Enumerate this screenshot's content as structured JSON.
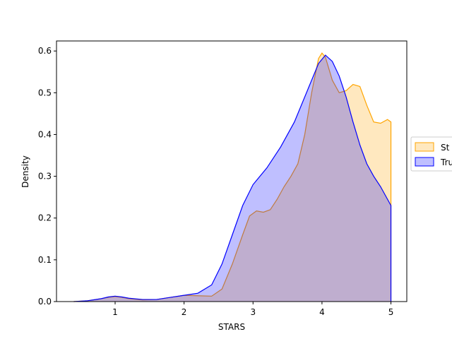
{
  "chart_data": {
    "type": "area",
    "title": "",
    "xlabel": "STARS",
    "ylabel": "Density",
    "xlim": [
      0.15,
      5.23
    ],
    "ylim": [
      0.0,
      0.624
    ],
    "xticks": [
      1,
      2,
      3,
      4,
      5
    ],
    "yticks": [
      0.0,
      0.1,
      0.2,
      0.3,
      0.4,
      0.5,
      0.6
    ],
    "xtick_labels": [
      "1",
      "2",
      "3",
      "4",
      "5"
    ],
    "ytick_labels": [
      "0.0",
      "0.1",
      "0.2",
      "0.3",
      "0.4",
      "0.5",
      "0.6"
    ],
    "grid": false,
    "legend_position": "right, partially clipped",
    "series": [
      {
        "name": "St",
        "fill_color": "#ffa500",
        "edge_color": "#ffa500",
        "fill_opacity": 0.25,
        "points": [
          [
            0.4,
            0.0
          ],
          [
            0.6,
            0.002
          ],
          [
            0.8,
            0.007
          ],
          [
            0.9,
            0.01
          ],
          [
            1.0,
            0.012
          ],
          [
            1.1,
            0.01
          ],
          [
            1.2,
            0.007
          ],
          [
            1.4,
            0.004
          ],
          [
            1.6,
            0.005
          ],
          [
            1.8,
            0.01
          ],
          [
            2.0,
            0.015
          ],
          [
            2.2,
            0.014
          ],
          [
            2.4,
            0.013
          ],
          [
            2.55,
            0.03
          ],
          [
            2.7,
            0.09
          ],
          [
            2.85,
            0.16
          ],
          [
            2.95,
            0.205
          ],
          [
            3.05,
            0.217
          ],
          [
            3.15,
            0.214
          ],
          [
            3.25,
            0.22
          ],
          [
            3.35,
            0.245
          ],
          [
            3.45,
            0.275
          ],
          [
            3.55,
            0.3
          ],
          [
            3.65,
            0.33
          ],
          [
            3.75,
            0.4
          ],
          [
            3.85,
            0.5
          ],
          [
            3.95,
            0.582
          ],
          [
            4.0,
            0.595
          ],
          [
            4.05,
            0.585
          ],
          [
            4.15,
            0.53
          ],
          [
            4.25,
            0.5
          ],
          [
            4.35,
            0.505
          ],
          [
            4.45,
            0.52
          ],
          [
            4.55,
            0.515
          ],
          [
            4.65,
            0.47
          ],
          [
            4.75,
            0.43
          ],
          [
            4.85,
            0.427
          ],
          [
            4.95,
            0.436
          ],
          [
            5.0,
            0.43
          ]
        ]
      },
      {
        "name": "Tru",
        "fill_color": "#0000ff",
        "edge_color": "#0000ff",
        "fill_opacity": 0.25,
        "points": [
          [
            0.4,
            0.0
          ],
          [
            0.6,
            0.002
          ],
          [
            0.8,
            0.007
          ],
          [
            0.9,
            0.011
          ],
          [
            1.0,
            0.013
          ],
          [
            1.1,
            0.011
          ],
          [
            1.2,
            0.008
          ],
          [
            1.4,
            0.005
          ],
          [
            1.6,
            0.005
          ],
          [
            1.8,
            0.01
          ],
          [
            2.0,
            0.015
          ],
          [
            2.2,
            0.02
          ],
          [
            2.4,
            0.04
          ],
          [
            2.55,
            0.09
          ],
          [
            2.7,
            0.16
          ],
          [
            2.85,
            0.23
          ],
          [
            3.0,
            0.28
          ],
          [
            3.2,
            0.32
          ],
          [
            3.4,
            0.37
          ],
          [
            3.6,
            0.43
          ],
          [
            3.8,
            0.51
          ],
          [
            3.95,
            0.57
          ],
          [
            4.05,
            0.59
          ],
          [
            4.15,
            0.575
          ],
          [
            4.25,
            0.54
          ],
          [
            4.35,
            0.49
          ],
          [
            4.45,
            0.43
          ],
          [
            4.55,
            0.375
          ],
          [
            4.65,
            0.33
          ],
          [
            4.75,
            0.3
          ],
          [
            4.85,
            0.275
          ],
          [
            4.95,
            0.245
          ],
          [
            5.0,
            0.23
          ]
        ]
      }
    ]
  }
}
